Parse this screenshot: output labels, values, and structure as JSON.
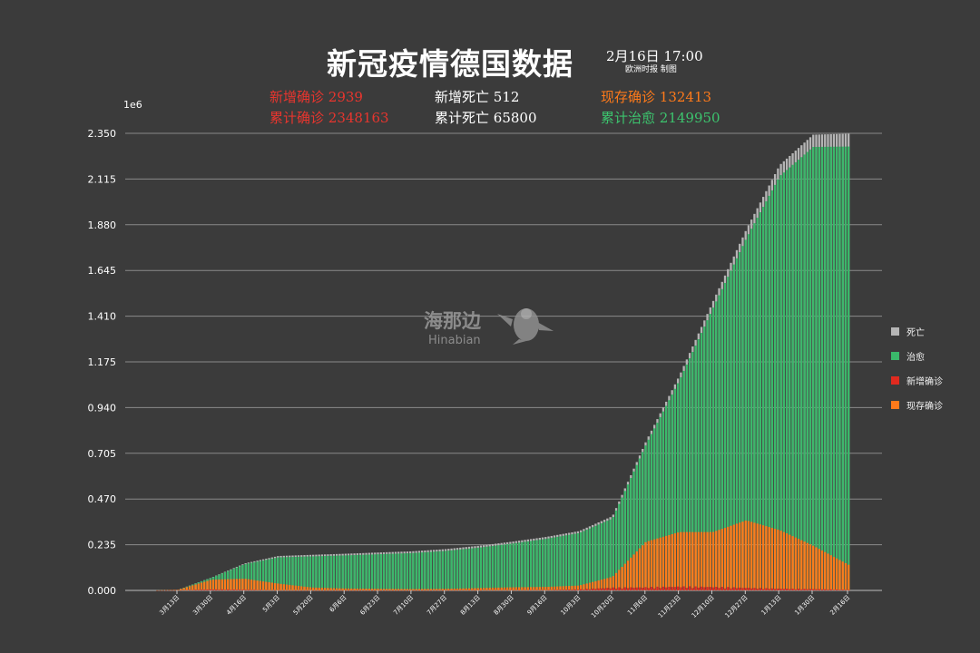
{
  "header": {
    "title": "新冠疫情德国数据",
    "date": "2月16日  17:00",
    "credit": "欧洲时报 制图"
  },
  "stats": {
    "new_confirmed_label": "新增确诊",
    "new_confirmed_value": "2939",
    "total_confirmed_label": "累计确诊",
    "total_confirmed_value": "2348163",
    "new_deaths_label": "新增死亡",
    "new_deaths_value": "512",
    "total_deaths_label": "累计死亡",
    "total_deaths_value": "65800",
    "active_label": "现存确诊",
    "active_value": "132413",
    "recovered_label": "累计治愈",
    "recovered_value": "2149950"
  },
  "watermark": {
    "cn": "海那边",
    "en": "Hinabian"
  },
  "colors": {
    "background": "#3b3b3b",
    "deaths": "#b5b5b5",
    "recovered": "#3ab86a",
    "new_confirmed": "#e02a1f",
    "active": "#ff7a1a",
    "grid": "#8a8a8a"
  },
  "chart_data": {
    "type": "bar",
    "stacked": true,
    "title": "新冠疫情德国数据",
    "y_scale_label": "1e6",
    "ylim": [
      0,
      2.35
    ],
    "yticks": [
      "0.000",
      "0.235",
      "0.470",
      "0.705",
      "0.940",
      "1.175",
      "1.410",
      "1.645",
      "1.880",
      "2.115",
      "2.350"
    ],
    "x_tick_labels": [
      "3月13日",
      "3月30日",
      "4月16日",
      "5月3日",
      "5月20日",
      "6月6日",
      "6月23日",
      "7月10日",
      "7月27日",
      "8月13日",
      "8月30日",
      "9月16日",
      "10月3日",
      "10月20日",
      "11月6日",
      "11月23日",
      "12月10日",
      "12月27日",
      "1月13日",
      "1月30日",
      "2月16日"
    ],
    "legend": [
      "死亡",
      "治愈",
      "新增确诊",
      "现存确诊"
    ],
    "legend_position": "right",
    "x_start": "3月1日",
    "x_end": "2月16日",
    "days_total": 353,
    "anchor_days": [
      0,
      12,
      29,
      46,
      63,
      80,
      97,
      114,
      131,
      148,
      165,
      182,
      199,
      216,
      233,
      250,
      267,
      284,
      301,
      318,
      335,
      353
    ],
    "series": [
      {
        "name": "现存确诊",
        "unit": "1e6",
        "values": [
          0.0,
          0.003,
          0.055,
          0.06,
          0.035,
          0.015,
          0.01,
          0.008,
          0.007,
          0.008,
          0.012,
          0.016,
          0.018,
          0.025,
          0.07,
          0.25,
          0.3,
          0.3,
          0.36,
          0.31,
          0.23,
          0.132
        ]
      },
      {
        "name": "新增确诊",
        "unit": "1e6",
        "values": [
          0.0,
          0.001,
          0.006,
          0.004,
          0.001,
          0.0005,
          0.0004,
          0.0004,
          0.0005,
          0.001,
          0.0013,
          0.0015,
          0.002,
          0.006,
          0.016,
          0.018,
          0.022,
          0.02,
          0.015,
          0.01,
          0.008,
          0.003
        ]
      },
      {
        "name": "治愈",
        "unit": "1e6",
        "values": [
          0.0,
          0.0,
          0.01,
          0.075,
          0.135,
          0.16,
          0.17,
          0.178,
          0.185,
          0.195,
          0.208,
          0.225,
          0.247,
          0.27,
          0.3,
          0.5,
          0.78,
          1.15,
          1.45,
          1.82,
          2.05,
          2.15
        ]
      },
      {
        "name": "死亡",
        "unit": "1e6",
        "values": [
          0.0,
          0.0,
          0.001,
          0.004,
          0.007,
          0.008,
          0.0085,
          0.009,
          0.009,
          0.0093,
          0.0095,
          0.0096,
          0.0098,
          0.01,
          0.012,
          0.016,
          0.024,
          0.034,
          0.045,
          0.057,
          0.063,
          0.066
        ]
      }
    ]
  }
}
